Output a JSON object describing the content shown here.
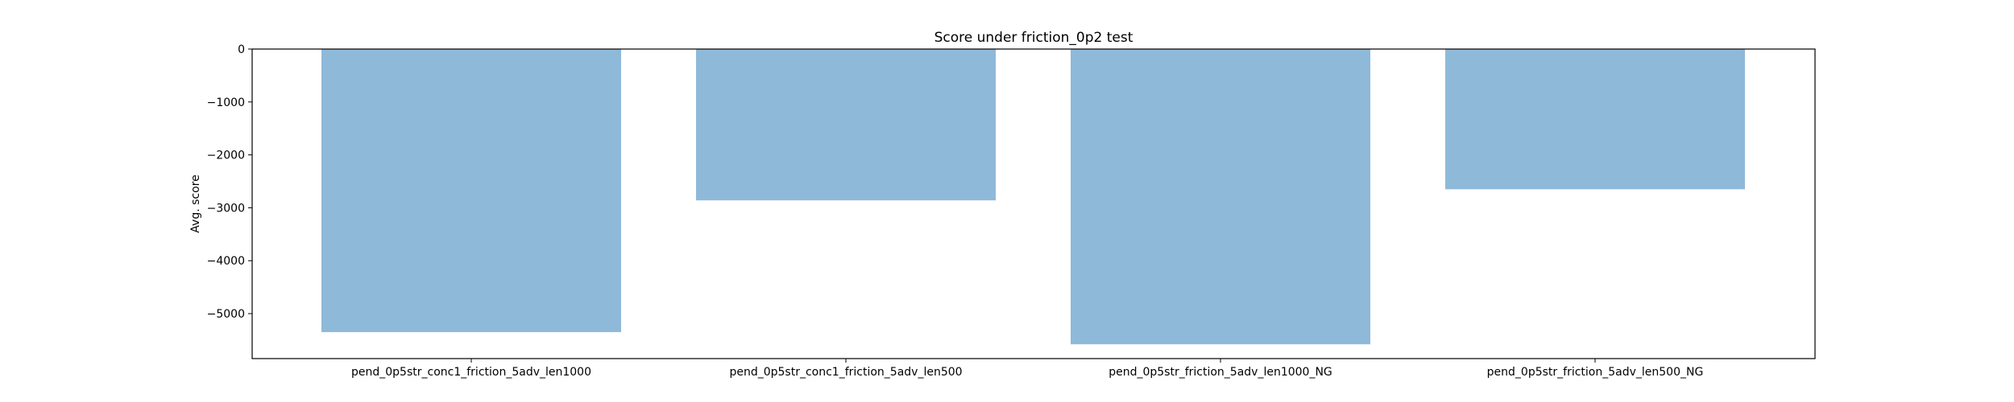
{
  "chart_data": {
    "type": "bar",
    "title": "Score under friction_0p2 test",
    "xlabel": "",
    "ylabel": "Avg. score",
    "categories": [
      "pend_0p5str_conc1_friction_5adv_len1000",
      "pend_0p5str_conc1_friction_5adv_len500",
      "pend_0p5str_friction_5adv_len1000_NG",
      "pend_0p5str_friction_5adv_len500_NG"
    ],
    "values": [
      -5350,
      -2860,
      -5580,
      -2650
    ],
    "ylim": [
      -5850,
      0
    ],
    "yticks": [
      0,
      -1000,
      -2000,
      -3000,
      -4000,
      -5000
    ],
    "grid": false,
    "bar_color": "#8fb9d9"
  }
}
